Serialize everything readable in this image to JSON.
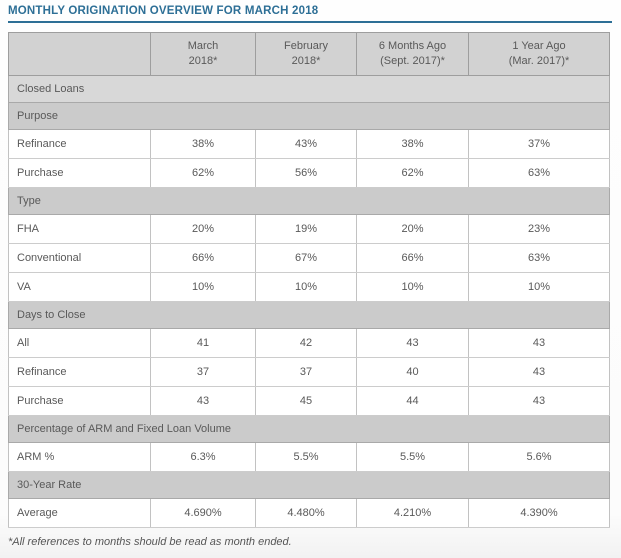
{
  "title": "MONTHLY ORIGINATION OVERVIEW FOR MARCH 2018",
  "footnote": "*All references to months should be read as month ended.",
  "colors": {
    "title_blue": "#2d6f96",
    "header_bg": "#d2d2d2",
    "section_bg": "#cbcbcb",
    "closed_loans_bg": "#d8d8d8",
    "data_row_bg": "#ffffff",
    "text_gray": "#595959",
    "border_outer": "#9b9b9b",
    "border_light": "#c2c2c2",
    "border_dark": "#8c8c8c"
  },
  "chart_data": {
    "type": "table",
    "title": "MONTHLY ORIGINATION OVERVIEW FOR MARCH 2018",
    "columns": [
      {
        "line1": "",
        "line2": ""
      },
      {
        "line1": "March",
        "line2": "2018*"
      },
      {
        "line1": "February",
        "line2": "2018*"
      },
      {
        "line1": "6 Months Ago",
        "line2": "(Sept. 2017)*"
      },
      {
        "line1": "1 Year Ago",
        "line2": "(Mar. 2017)*"
      }
    ],
    "sections": [
      {
        "header": "Closed Loans",
        "rows": []
      },
      {
        "header": "Purpose",
        "rows": [
          {
            "label": "Refinance",
            "values": [
              "38%",
              "43%",
              "38%",
              "37%"
            ]
          },
          {
            "label": "Purchase",
            "values": [
              "62%",
              "56%",
              "62%",
              "63%"
            ]
          }
        ]
      },
      {
        "header": "Type",
        "rows": [
          {
            "label": "FHA",
            "values": [
              "20%",
              "19%",
              "20%",
              "23%"
            ]
          },
          {
            "label": "Conventional",
            "values": [
              "66%",
              "67%",
              "66%",
              "63%"
            ]
          },
          {
            "label": "VA",
            "values": [
              "10%",
              "10%",
              "10%",
              "10%"
            ]
          }
        ]
      },
      {
        "header": "Days to Close",
        "rows": [
          {
            "label": "All",
            "values": [
              "41",
              "42",
              "43",
              "43"
            ]
          },
          {
            "label": "Refinance",
            "values": [
              "37",
              "37",
              "40",
              "43"
            ]
          },
          {
            "label": "Purchase",
            "values": [
              "43",
              "45",
              "44",
              "43"
            ]
          }
        ]
      },
      {
        "header": "Percentage of ARM and Fixed Loan Volume",
        "rows": [
          {
            "label": "ARM %",
            "values": [
              "6.3%",
              "5.5%",
              "5.5%",
              "5.6%"
            ]
          }
        ]
      },
      {
        "header": "30-Year Rate",
        "rows": [
          {
            "label": "Average",
            "values": [
              "4.690%",
              "4.480%",
              "4.210%",
              "4.390%"
            ]
          }
        ]
      }
    ],
    "footnote": "*All references to months should be read as month ended."
  }
}
